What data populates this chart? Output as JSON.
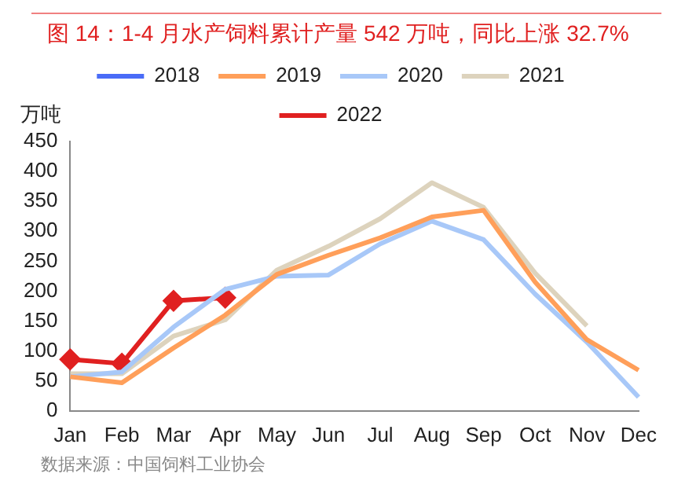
{
  "chart_data": {
    "type": "line",
    "title": "图 14：1-4 月水产饲料累计产量 542 万吨，同比上涨 32.7%",
    "ylabel": "万吨",
    "annotations": [
      "数据来源：中国饲料工业协会"
    ],
    "categories": [
      "Jan",
      "Feb",
      "Mar",
      "Apr",
      "May",
      "Jun",
      "Jul",
      "Aug",
      "Sep",
      "Oct",
      "Nov",
      "Dec"
    ],
    "series": [
      {
        "name": "2018",
        "color": "#4a6cf7",
        "values": [
          null,
          null,
          null,
          null,
          null,
          null,
          null,
          null,
          null,
          null,
          null,
          null
        ]
      },
      {
        "name": "2019",
        "color": "#ff9f5a",
        "values": [
          57,
          47,
          105,
          160,
          228,
          260,
          289,
          324,
          335,
          215,
          119,
          68
        ]
      },
      {
        "name": "2020",
        "color": "#a8c8f8",
        "values": [
          57,
          65,
          140,
          203,
          225,
          227,
          279,
          317,
          286,
          195,
          115,
          23
        ]
      },
      {
        "name": "2021",
        "color": "#ddd3bd",
        "values": [
          62,
          62,
          125,
          152,
          235,
          275,
          321,
          381,
          340,
          230,
          142,
          null
        ]
      },
      {
        "name": "2022",
        "color": "#e02020",
        "marker": "diamond",
        "values": [
          86,
          79,
          184,
          189,
          null,
          null,
          null,
          null,
          null,
          null,
          null,
          null
        ]
      }
    ],
    "ylim": [
      0,
      450
    ],
    "yticks": [
      0,
      50,
      100,
      150,
      200,
      250,
      300,
      350,
      400,
      450
    ],
    "grid": false,
    "legend": "top",
    "line_style": "solid"
  }
}
